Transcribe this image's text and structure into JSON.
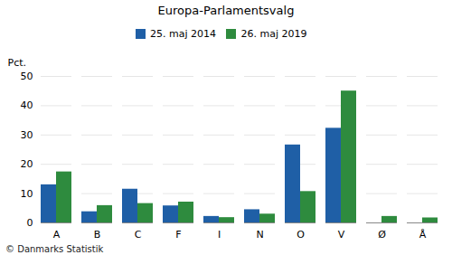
{
  "chart_data": {
    "type": "bar",
    "title": "Europa-Parlamentsvalg",
    "categories": [
      "A",
      "B",
      "C",
      "F",
      "I",
      "N",
      "O",
      "V",
      "Ø",
      "Å"
    ],
    "series": [
      {
        "name": "25. maj 2014",
        "color": "#1F5FA6",
        "values": [
          13.0,
          3.8,
          11.5,
          5.8,
          2.2,
          4.5,
          26.6,
          32.3,
          0.0,
          0.0
        ]
      },
      {
        "name": "26. maj 2019",
        "color": "#2E8B3E",
        "values": [
          17.4,
          5.9,
          6.6,
          7.1,
          1.8,
          3.0,
          10.7,
          45.0,
          2.2,
          1.7
        ]
      }
    ],
    "ylabel": "Pct.",
    "ylim": [
      0,
      50
    ],
    "yticks": [
      0,
      10,
      20,
      30,
      40,
      50
    ],
    "grid": true,
    "legend": "top",
    "footnote": "© Danmarks Statistik"
  }
}
